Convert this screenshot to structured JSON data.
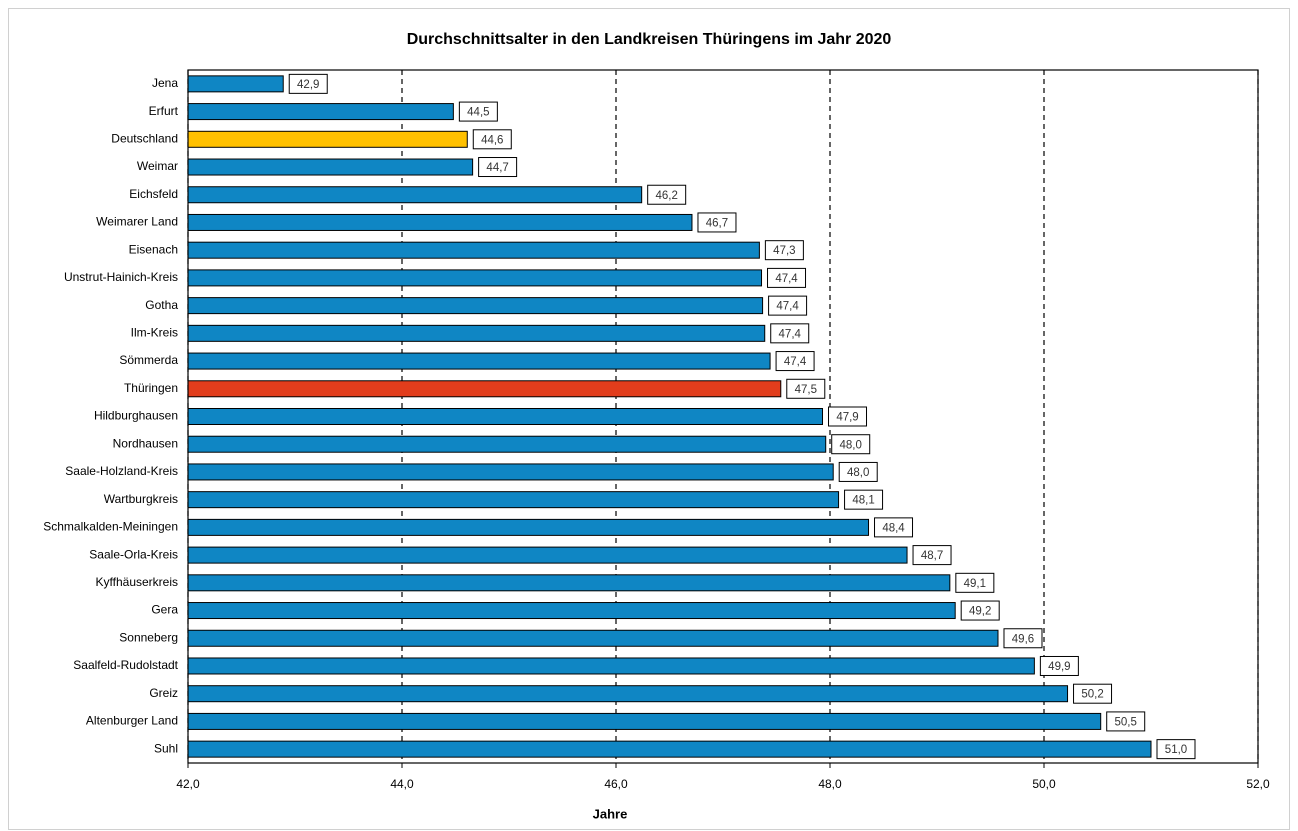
{
  "chart_data": {
    "type": "hbar",
    "title": "Durchschnittsalter in den Landkreisen Thüringens im Jahr 2020",
    "x_label": "Jahre",
    "categories": [
      "Jena",
      "Erfurt",
      "Deutschland",
      "Weimar",
      "Eichsfeld",
      "Weimarer Land",
      "Eisenach",
      "Unstrut-Hainich-Kreis",
      "Gotha",
      "Ilm-Kreis",
      "Sömmerda",
      "Thüringen",
      "Hildburghausen",
      "Nordhausen",
      "Saale-Holzland-Kreis",
      "Wartburgkreis",
      "Schmalkalden-Meiningen",
      "Saale-Orla-Kreis",
      "Kyffhäuserkreis",
      "Gera",
      "Sonneberg",
      "Saalfeld-Rudolstadt",
      "Greiz",
      "Altenburger Land",
      "Suhl"
    ],
    "values": [
      42.89,
      44.48,
      44.61,
      44.66,
      46.24,
      46.71,
      47.34,
      47.36,
      47.37,
      47.39,
      47.44,
      47.54,
      47.93,
      47.96,
      48.03,
      48.08,
      48.36,
      48.72,
      49.12,
      49.17,
      49.57,
      49.91,
      50.22,
      50.53,
      51.0
    ],
    "value_labels": [
      "42,9",
      "44,5",
      "44,6",
      "44,7",
      "46,2",
      "46,7",
      "47,3",
      "47,4",
      "47,4",
      "47,4",
      "47,4",
      "47,5",
      "47,9",
      "48,0",
      "48,0",
      "48,1",
      "48,4",
      "48,7",
      "49,1",
      "49,2",
      "49,6",
      "49,9",
      "50,2",
      "50,5",
      "51,0"
    ],
    "colors": [
      "#0f86c4",
      "#0f86c4",
      "#ffc000",
      "#0f86c4",
      "#0f86c4",
      "#0f86c4",
      "#0f86c4",
      "#0f86c4",
      "#0f86c4",
      "#0f86c4",
      "#0f86c4",
      "#e23d1c",
      "#0f86c4",
      "#0f86c4",
      "#0f86c4",
      "#0f86c4",
      "#0f86c4",
      "#0f86c4",
      "#0f86c4",
      "#0f86c4",
      "#0f86c4",
      "#0f86c4",
      "#0f86c4",
      "#0f86c4",
      "#0f86c4"
    ],
    "xlim": [
      42,
      52
    ],
    "xticks": [
      {
        "value": 42,
        "label": "42,0"
      },
      {
        "value": 44,
        "label": "44,0"
      },
      {
        "value": 46,
        "label": "46,0"
      },
      {
        "value": 48,
        "label": "48,0"
      },
      {
        "value": 50,
        "label": "50,0"
      },
      {
        "value": 52,
        "label": "52,0"
      }
    ],
    "grid": true
  }
}
